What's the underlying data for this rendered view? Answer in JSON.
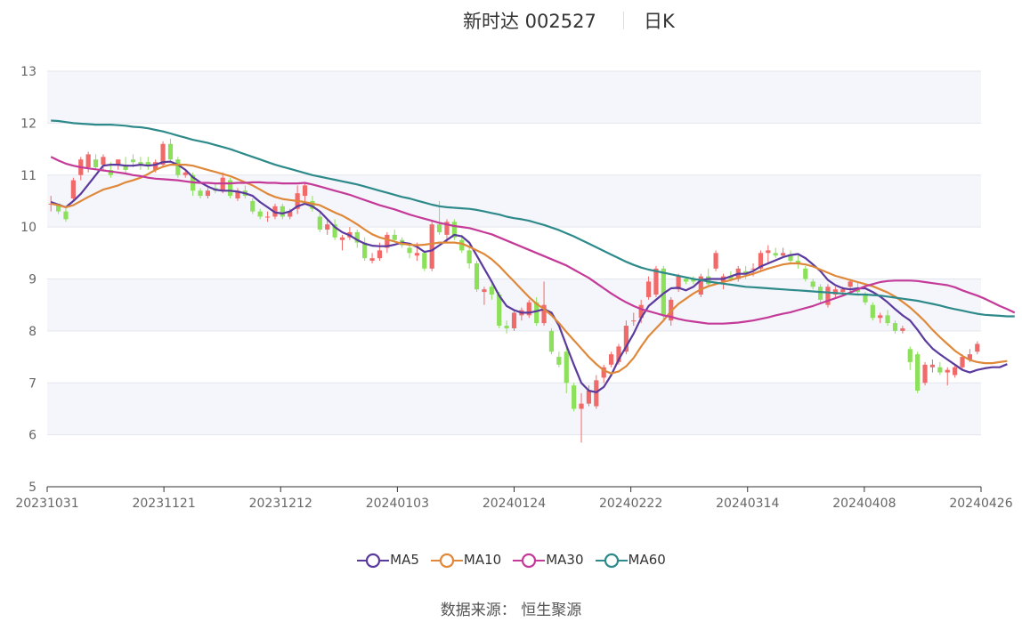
{
  "header": {
    "stock_name": "新时达 002527",
    "period": "日K"
  },
  "footer": {
    "source_label": "数据来源：",
    "source_name": "恒生聚源"
  },
  "legend": [
    {
      "name": "MA5",
      "color": "#5b3a9e"
    },
    {
      "name": "MA10",
      "color": "#e0883a"
    },
    {
      "name": "MA30",
      "color": "#c43a98"
    },
    {
      "name": "MA60",
      "color": "#2e8a8a"
    }
  ],
  "colors": {
    "up": "#f06a6a",
    "down": "#8ce05a",
    "grid_band": "#f5f6fb"
  },
  "chart_data": {
    "type": "candlestick",
    "title": "新时达 002527 日K",
    "x_tick_labels": [
      "20231031",
      "20231121",
      "20231212",
      "20240103",
      "20240124",
      "20240222",
      "20240314",
      "20240408",
      "20240426"
    ],
    "ylim": [
      5,
      13
    ],
    "y_ticks": [
      5,
      6,
      7,
      8,
      9,
      10,
      11,
      12,
      13
    ],
    "ohlc": [
      [
        10.45,
        10.6,
        10.3,
        10.45
      ],
      [
        10.45,
        10.45,
        10.25,
        10.3
      ],
      [
        10.3,
        10.4,
        10.1,
        10.15
      ],
      [
        10.55,
        10.95,
        10.5,
        10.9
      ],
      [
        11.0,
        11.35,
        10.9,
        11.3
      ],
      [
        11.15,
        11.45,
        11.05,
        11.4
      ],
      [
        11.3,
        11.4,
        11.1,
        11.15
      ],
      [
        11.2,
        11.4,
        11.1,
        11.35
      ],
      [
        11.1,
        11.25,
        10.95,
        11.0
      ],
      [
        11.2,
        11.3,
        11.1,
        11.3
      ],
      [
        11.2,
        11.35,
        11.05,
        11.1
      ],
      [
        11.3,
        11.4,
        11.15,
        11.25
      ],
      [
        11.25,
        11.35,
        11.1,
        11.2
      ],
      [
        11.25,
        11.35,
        11.1,
        11.2
      ],
      [
        11.1,
        11.3,
        11.05,
        11.25
      ],
      [
        11.2,
        11.65,
        11.15,
        11.6
      ],
      [
        11.6,
        11.7,
        11.25,
        11.3
      ],
      [
        11.3,
        11.35,
        10.95,
        11.0
      ],
      [
        11.0,
        11.1,
        10.95,
        11.05
      ],
      [
        11.0,
        11.05,
        10.6,
        10.7
      ],
      [
        10.7,
        10.75,
        10.55,
        10.6
      ],
      [
        10.6,
        10.75,
        10.55,
        10.7
      ],
      [
        10.75,
        10.85,
        10.65,
        10.7
      ],
      [
        10.7,
        11.05,
        10.65,
        10.95
      ],
      [
        10.9,
        10.95,
        10.55,
        10.6
      ],
      [
        10.55,
        10.75,
        10.5,
        10.7
      ],
      [
        10.7,
        10.8,
        10.55,
        10.6
      ],
      [
        10.5,
        10.55,
        10.25,
        10.3
      ],
      [
        10.3,
        10.35,
        10.15,
        10.2
      ],
      [
        10.2,
        10.3,
        10.1,
        10.2
      ],
      [
        10.2,
        10.45,
        10.15,
        10.4
      ],
      [
        10.4,
        10.45,
        10.15,
        10.2
      ],
      [
        10.2,
        10.35,
        10.15,
        10.3
      ],
      [
        10.35,
        10.8,
        10.25,
        10.65
      ],
      [
        10.6,
        10.85,
        10.45,
        10.8
      ],
      [
        10.5,
        10.6,
        10.3,
        10.35
      ],
      [
        10.2,
        10.3,
        9.9,
        9.95
      ],
      [
        9.95,
        10.15,
        9.85,
        10.05
      ],
      [
        10.05,
        10.15,
        9.75,
        9.8
      ],
      [
        9.75,
        9.85,
        9.55,
        9.8
      ],
      [
        9.8,
        10.0,
        9.75,
        9.9
      ],
      [
        9.9,
        9.95,
        9.6,
        9.7
      ],
      [
        9.7,
        9.8,
        9.35,
        9.4
      ],
      [
        9.35,
        9.5,
        9.3,
        9.4
      ],
      [
        9.4,
        9.7,
        9.35,
        9.55
      ],
      [
        9.6,
        9.9,
        9.5,
        9.85
      ],
      [
        9.85,
        9.95,
        9.7,
        9.75
      ],
      [
        9.75,
        9.8,
        9.6,
        9.65
      ],
      [
        9.6,
        9.65,
        9.4,
        9.5
      ],
      [
        9.45,
        9.7,
        9.35,
        9.5
      ],
      [
        9.5,
        9.55,
        9.15,
        9.2
      ],
      [
        9.2,
        10.1,
        9.15,
        10.05
      ],
      [
        10.05,
        10.5,
        9.85,
        9.9
      ],
      [
        9.85,
        10.15,
        9.7,
        10.1
      ],
      [
        10.1,
        10.15,
        9.75,
        9.8
      ],
      [
        9.75,
        9.85,
        9.5,
        9.55
      ],
      [
        9.55,
        9.65,
        9.2,
        9.3
      ],
      [
        9.3,
        9.35,
        8.75,
        8.8
      ],
      [
        8.75,
        8.85,
        8.5,
        8.8
      ],
      [
        8.85,
        8.9,
        8.6,
        8.7
      ],
      [
        8.7,
        8.75,
        8.05,
        8.1
      ],
      [
        8.1,
        8.2,
        7.95,
        8.05
      ],
      [
        8.05,
        8.4,
        8.0,
        8.35
      ],
      [
        8.3,
        8.45,
        8.2,
        8.4
      ],
      [
        8.3,
        8.6,
        8.25,
        8.55
      ],
      [
        8.55,
        8.65,
        8.1,
        8.15
      ],
      [
        8.15,
        8.95,
        8.1,
        8.5
      ],
      [
        8.0,
        8.05,
        7.55,
        7.6
      ],
      [
        7.5,
        7.6,
        7.3,
        7.35
      ],
      [
        7.6,
        7.75,
        6.8,
        7.0
      ],
      [
        6.95,
        7.0,
        6.45,
        6.5
      ],
      [
        6.5,
        6.8,
        5.85,
        6.6
      ],
      [
        6.6,
        6.95,
        6.55,
        6.85
      ],
      [
        6.55,
        7.15,
        6.5,
        7.05
      ],
      [
        7.1,
        7.35,
        7.0,
        7.3
      ],
      [
        7.35,
        7.6,
        7.3,
        7.55
      ],
      [
        7.4,
        7.75,
        7.35,
        7.7
      ],
      [
        7.6,
        8.2,
        7.55,
        8.1
      ],
      [
        8.2,
        8.35,
        8.1,
        8.2
      ],
      [
        8.25,
        8.6,
        8.15,
        8.5
      ],
      [
        8.65,
        9.05,
        8.6,
        8.95
      ],
      [
        8.7,
        9.25,
        8.65,
        9.2
      ],
      [
        9.2,
        9.25,
        8.2,
        8.3
      ],
      [
        8.2,
        8.65,
        8.1,
        8.6
      ],
      [
        8.8,
        9.1,
        8.75,
        9.05
      ],
      [
        9.0,
        9.05,
        8.9,
        8.95
      ],
      [
        9.0,
        9.05,
        8.9,
        8.95
      ],
      [
        8.7,
        9.1,
        8.65,
        9.05
      ],
      [
        9.05,
        9.2,
        8.85,
        8.9
      ],
      [
        9.2,
        9.55,
        9.15,
        9.5
      ],
      [
        8.95,
        9.1,
        8.8,
        9.05
      ],
      [
        9.05,
        9.15,
        8.95,
        9.0
      ],
      [
        9.0,
        9.25,
        8.95,
        9.2
      ],
      [
        9.15,
        9.25,
        9.0,
        9.1
      ],
      [
        9.2,
        9.3,
        9.05,
        9.2
      ],
      [
        9.2,
        9.55,
        9.15,
        9.5
      ],
      [
        9.5,
        9.65,
        9.3,
        9.55
      ],
      [
        9.5,
        9.6,
        9.4,
        9.45
      ],
      [
        9.45,
        9.6,
        9.4,
        9.5
      ],
      [
        9.45,
        9.55,
        9.3,
        9.35
      ],
      [
        9.35,
        9.45,
        9.2,
        9.3
      ],
      [
        9.2,
        9.25,
        8.95,
        9.0
      ],
      [
        8.95,
        9.0,
        8.8,
        8.85
      ],
      [
        8.85,
        8.9,
        8.55,
        8.6
      ],
      [
        8.5,
        8.9,
        8.45,
        8.85
      ],
      [
        8.7,
        8.85,
        8.65,
        8.8
      ],
      [
        8.75,
        8.85,
        8.7,
        8.8
      ],
      [
        8.85,
        9.0,
        8.75,
        8.95
      ],
      [
        8.8,
        8.95,
        8.7,
        8.75
      ],
      [
        8.7,
        8.75,
        8.5,
        8.55
      ],
      [
        8.5,
        8.55,
        8.2,
        8.25
      ],
      [
        8.25,
        8.35,
        8.15,
        8.3
      ],
      [
        8.3,
        8.4,
        8.1,
        8.15
      ],
      [
        8.15,
        8.2,
        7.95,
        8.0
      ],
      [
        8.0,
        8.1,
        7.95,
        8.05
      ],
      [
        7.65,
        7.7,
        7.25,
        7.4
      ],
      [
        7.55,
        7.6,
        6.8,
        6.85
      ],
      [
        7.0,
        7.4,
        6.95,
        7.35
      ],
      [
        7.3,
        7.45,
        7.2,
        7.35
      ],
      [
        7.3,
        7.4,
        7.15,
        7.2
      ],
      [
        7.2,
        7.3,
        6.95,
        7.25
      ],
      [
        7.15,
        7.35,
        7.1,
        7.3
      ],
      [
        7.3,
        7.55,
        7.25,
        7.5
      ],
      [
        7.45,
        7.65,
        7.4,
        7.55
      ],
      [
        7.6,
        7.8,
        7.55,
        7.75
      ]
    ],
    "series": [
      {
        "name": "MA5",
        "values": [
          10.48,
          10.43,
          10.38,
          10.5,
          10.64,
          10.82,
          11.0,
          11.18,
          11.2,
          11.2,
          11.18,
          11.18,
          11.2,
          11.18,
          11.2,
          11.25,
          11.26,
          11.2,
          11.1,
          10.96,
          10.86,
          10.78,
          10.72,
          10.7,
          10.7,
          10.68,
          10.65,
          10.6,
          10.48,
          10.38,
          10.28,
          10.26,
          10.3,
          10.4,
          10.45,
          10.4,
          10.3,
          10.15,
          10.0,
          9.9,
          9.84,
          9.75,
          9.68,
          9.64,
          9.63,
          9.63,
          9.66,
          9.7,
          9.68,
          9.62,
          9.52,
          9.55,
          9.65,
          9.75,
          9.85,
          9.82,
          9.7,
          9.45,
          9.2,
          8.95,
          8.68,
          8.48,
          8.4,
          8.35,
          8.35,
          8.38,
          8.42,
          8.35,
          8.1,
          7.72,
          7.35,
          7.0,
          6.85,
          6.82,
          6.92,
          7.15,
          7.45,
          7.7,
          7.95,
          8.25,
          8.48,
          8.6,
          8.72,
          8.82,
          8.83,
          8.78,
          8.85,
          8.98,
          9.0,
          9.0,
          9.0,
          9.05,
          9.1,
          9.1,
          9.15,
          9.24,
          9.3,
          9.36,
          9.42,
          9.46,
          9.48,
          9.4,
          9.28,
          9.15,
          8.98,
          8.88,
          8.82,
          8.8,
          8.82,
          8.82,
          8.75,
          8.66,
          8.55,
          8.42,
          8.3,
          8.2,
          8.02,
          7.82,
          7.66,
          7.55,
          7.45,
          7.35,
          7.25,
          7.2,
          7.25,
          7.28,
          7.3,
          7.3,
          7.36
        ]
      },
      {
        "name": "MA10",
        "values": [
          10.45,
          10.42,
          10.38,
          10.42,
          10.5,
          10.58,
          10.65,
          10.72,
          10.76,
          10.8,
          10.86,
          10.9,
          10.95,
          11.02,
          11.1,
          11.16,
          11.2,
          11.2,
          11.2,
          11.18,
          11.14,
          11.1,
          11.06,
          11.02,
          10.98,
          10.92,
          10.86,
          10.8,
          10.72,
          10.64,
          10.58,
          10.54,
          10.52,
          10.5,
          10.48,
          10.45,
          10.42,
          10.35,
          10.28,
          10.22,
          10.14,
          10.05,
          9.95,
          9.86,
          9.8,
          9.76,
          9.72,
          9.68,
          9.66,
          9.65,
          9.66,
          9.68,
          9.7,
          9.7,
          9.7,
          9.68,
          9.62,
          9.55,
          9.48,
          9.38,
          9.25,
          9.1,
          8.95,
          8.8,
          8.65,
          8.52,
          8.42,
          8.3,
          8.15,
          7.98,
          7.82,
          7.66,
          7.5,
          7.36,
          7.24,
          7.18,
          7.22,
          7.32,
          7.48,
          7.7,
          7.9,
          8.05,
          8.2,
          8.38,
          8.52,
          8.62,
          8.72,
          8.8,
          8.86,
          8.9,
          8.94,
          8.98,
          9.02,
          9.06,
          9.1,
          9.15,
          9.2,
          9.24,
          9.28,
          9.3,
          9.3,
          9.28,
          9.24,
          9.18,
          9.12,
          9.06,
          9.02,
          8.98,
          8.94,
          8.9,
          8.86,
          8.8,
          8.74,
          8.66,
          8.56,
          8.45,
          8.32,
          8.18,
          8.02,
          7.88,
          7.75,
          7.62,
          7.52,
          7.44,
          7.4,
          7.38,
          7.38,
          7.4,
          7.42
        ]
      },
      {
        "name": "MA30",
        "values": [
          11.35,
          11.28,
          11.22,
          11.18,
          11.15,
          11.13,
          11.11,
          11.09,
          11.07,
          11.05,
          11.03,
          11.0,
          10.98,
          10.95,
          10.93,
          10.92,
          10.91,
          10.9,
          10.88,
          10.86,
          10.85,
          10.85,
          10.84,
          10.84,
          10.84,
          10.85,
          10.85,
          10.86,
          10.86,
          10.85,
          10.85,
          10.84,
          10.84,
          10.84,
          10.85,
          10.82,
          10.78,
          10.74,
          10.7,
          10.66,
          10.62,
          10.57,
          10.52,
          10.47,
          10.42,
          10.38,
          10.34,
          10.29,
          10.24,
          10.2,
          10.16,
          10.12,
          10.08,
          10.05,
          10.02,
          10.0,
          9.98,
          9.94,
          9.9,
          9.86,
          9.8,
          9.74,
          9.68,
          9.62,
          9.56,
          9.5,
          9.44,
          9.38,
          9.32,
          9.26,
          9.18,
          9.1,
          9.02,
          8.92,
          8.82,
          8.72,
          8.63,
          8.55,
          8.48,
          8.42,
          8.38,
          8.34,
          8.3,
          8.27,
          8.23,
          8.2,
          8.18,
          8.16,
          8.14,
          8.14,
          8.14,
          8.15,
          8.16,
          8.18,
          8.2,
          8.23,
          8.26,
          8.3,
          8.33,
          8.36,
          8.4,
          8.44,
          8.48,
          8.53,
          8.58,
          8.63,
          8.68,
          8.74,
          8.8,
          8.86,
          8.9,
          8.94,
          8.96,
          8.97,
          8.97,
          8.97,
          8.96,
          8.94,
          8.92,
          8.9,
          8.88,
          8.84,
          8.78,
          8.73,
          8.68,
          8.62,
          8.55,
          8.48,
          8.42,
          8.35
        ]
      },
      {
        "name": "MA60",
        "values": [
          12.05,
          12.04,
          12.02,
          12.0,
          11.99,
          11.98,
          11.97,
          11.97,
          11.97,
          11.96,
          11.95,
          11.93,
          11.92,
          11.9,
          11.87,
          11.84,
          11.8,
          11.76,
          11.72,
          11.68,
          11.65,
          11.62,
          11.58,
          11.54,
          11.5,
          11.45,
          11.4,
          11.35,
          11.3,
          11.25,
          11.2,
          11.16,
          11.12,
          11.08,
          11.04,
          11.0,
          10.97,
          10.94,
          10.91,
          10.88,
          10.85,
          10.82,
          10.78,
          10.74,
          10.7,
          10.66,
          10.62,
          10.58,
          10.55,
          10.51,
          10.47,
          10.43,
          10.4,
          10.38,
          10.37,
          10.36,
          10.35,
          10.33,
          10.3,
          10.27,
          10.24,
          10.2,
          10.17,
          10.15,
          10.12,
          10.08,
          10.04,
          9.99,
          9.94,
          9.88,
          9.82,
          9.75,
          9.68,
          9.61,
          9.54,
          9.47,
          9.4,
          9.33,
          9.27,
          9.22,
          9.18,
          9.15,
          9.12,
          9.09,
          9.06,
          9.03,
          9.0,
          8.98,
          8.95,
          8.93,
          8.91,
          8.89,
          8.87,
          8.85,
          8.84,
          8.83,
          8.82,
          8.81,
          8.8,
          8.79,
          8.78,
          8.77,
          8.76,
          8.75,
          8.74,
          8.73,
          8.72,
          8.71,
          8.7,
          8.7,
          8.69,
          8.68,
          8.66,
          8.64,
          8.62,
          8.6,
          8.58,
          8.55,
          8.52,
          8.49,
          8.45,
          8.42,
          8.39,
          8.36,
          8.33,
          8.31,
          8.3,
          8.29,
          8.28,
          8.28
        ]
      }
    ]
  }
}
